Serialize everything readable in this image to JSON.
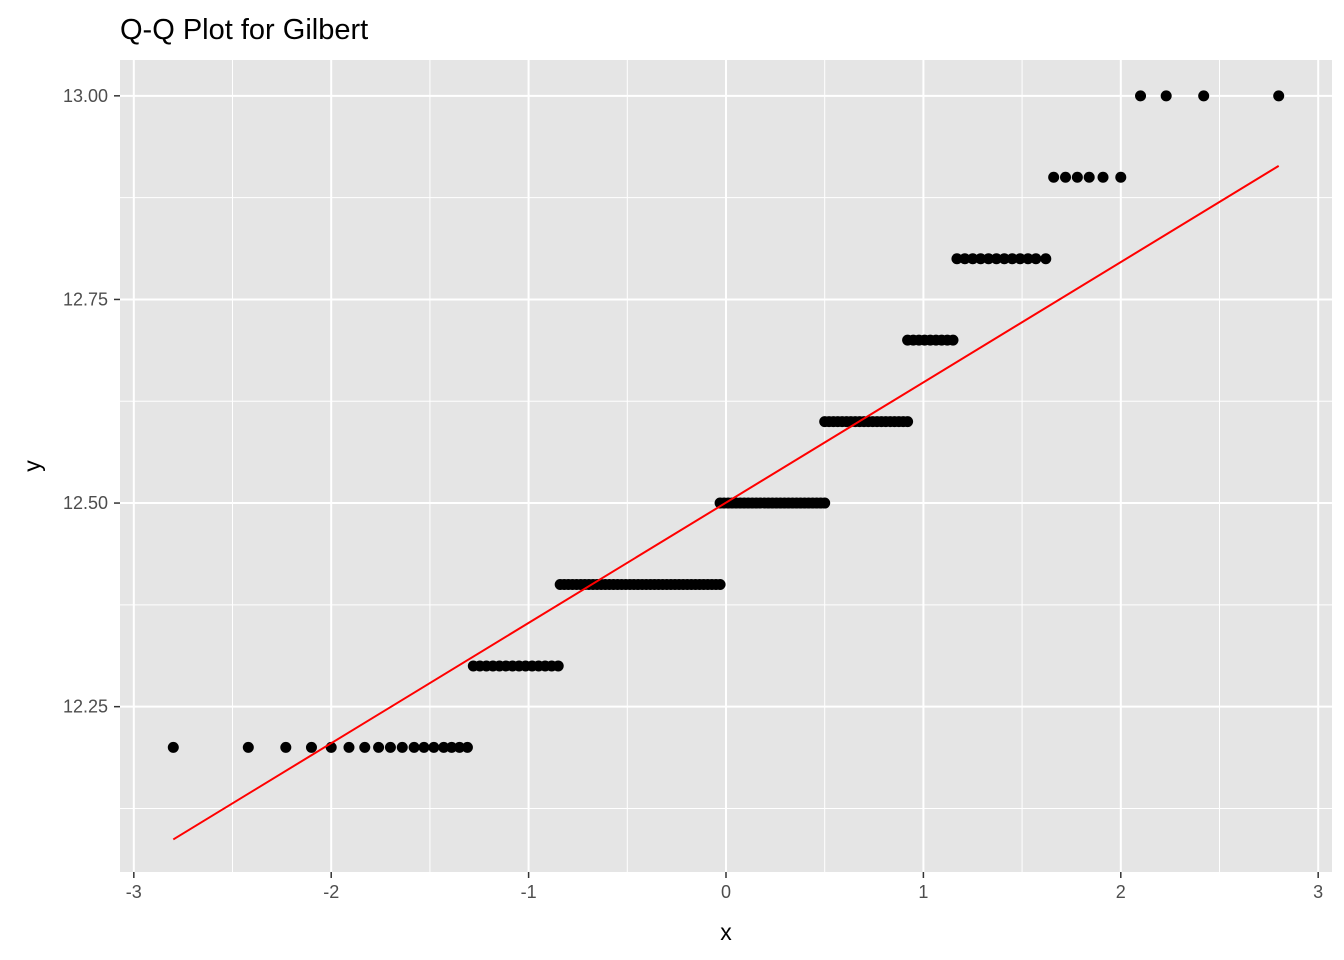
{
  "chart_data": {
    "type": "scatter",
    "title": "Q-Q Plot for Gilbert",
    "xlabel": "x",
    "ylabel": "y",
    "xlim": [
      -3.07,
      3.07
    ],
    "ylim": [
      12.047,
      13.044
    ],
    "x_ticks": [
      {
        "value": -3,
        "label": "-3"
      },
      {
        "value": -2,
        "label": "-2"
      },
      {
        "value": -1,
        "label": "-1"
      },
      {
        "value": 0,
        "label": "0"
      },
      {
        "value": 1,
        "label": "1"
      },
      {
        "value": 2,
        "label": "2"
      },
      {
        "value": 3,
        "label": "3"
      }
    ],
    "y_ticks": [
      {
        "value": 12.25,
        "label": "12.25"
      },
      {
        "value": 12.5,
        "label": "12.50"
      },
      {
        "value": 12.75,
        "label": "12.75"
      },
      {
        "value": 13.0,
        "label": "13.00"
      }
    ],
    "x_minor_grid": [
      -2.5,
      -1.5,
      -0.5,
      0.5,
      1.5,
      2.5
    ],
    "y_minor_grid": [
      12.125,
      12.375,
      12.625,
      12.875
    ],
    "grid": true,
    "point_groups": [
      {
        "y": 12.2,
        "x": [
          -2.8,
          -2.42,
          -2.23,
          -2.1,
          -2.0,
          -1.91,
          -1.83,
          -1.76,
          -1.7,
          -1.64,
          -1.58,
          -1.53,
          -1.48,
          -1.43,
          -1.39,
          -1.35,
          -1.31
        ]
      },
      {
        "y": 12.3,
        "xmin": -1.28,
        "xmax": -0.85,
        "count": 14
      },
      {
        "y": 12.4,
        "xmin": -0.84,
        "xmax": -0.03,
        "count": 40
      },
      {
        "y": 12.5,
        "xmin": -0.03,
        "xmax": 0.5,
        "count": 27
      },
      {
        "y": 12.6,
        "xmin": 0.5,
        "xmax": 0.92,
        "count": 20
      },
      {
        "y": 12.7,
        "xmin": 0.92,
        "xmax": 1.15,
        "count": 9
      },
      {
        "y": 12.8,
        "x": [
          1.17,
          1.21,
          1.25,
          1.29,
          1.33,
          1.37,
          1.41,
          1.45,
          1.49,
          1.53,
          1.57,
          1.62
        ]
      },
      {
        "y": 12.9,
        "x": [
          1.66,
          1.72,
          1.78,
          1.84,
          1.91,
          2.0
        ]
      },
      {
        "y": 13.0,
        "x": [
          2.1,
          2.23,
          2.42,
          2.8
        ]
      }
    ],
    "reference_line": {
      "color": "#ff0000",
      "points": [
        [
          -2.8,
          12.087
        ],
        [
          2.8,
          12.914
        ]
      ]
    },
    "colors": {
      "panel": "#e5e5e5",
      "grid": "#ffffff",
      "points": "#000000",
      "line": "#ff0000",
      "tick_text": "#4d4d4d",
      "tick_marks": "#333333"
    }
  }
}
